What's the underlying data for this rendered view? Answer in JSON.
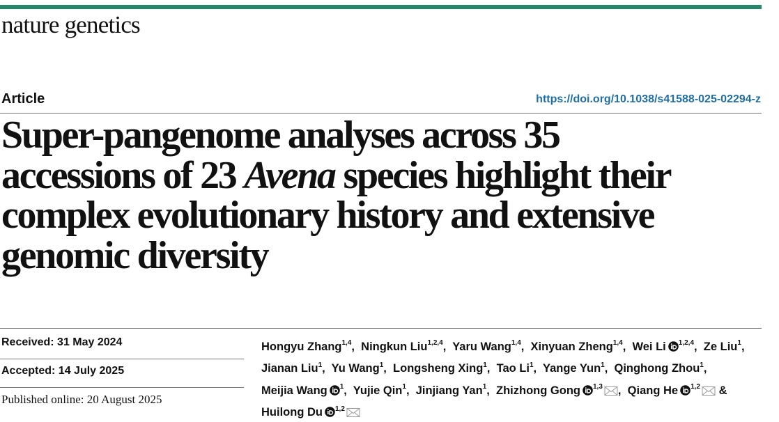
{
  "journal": "nature genetics",
  "article_type": "Article",
  "doi": "https://doi.org/10.1038/s41588-025-02294-z",
  "title_lines": [
    [
      {
        "text": "Super-pangenome analyses across 35"
      }
    ],
    [
      {
        "text": "accessions of 23 "
      },
      {
        "text": "Avena",
        "italic": true
      },
      {
        "text": " species highlight their"
      }
    ],
    [
      {
        "text": "complex evolutionary history and extensive"
      }
    ],
    [
      {
        "text": "genomic diversity"
      }
    ]
  ],
  "dates": [
    "Received: 31 May 2024",
    "Accepted: 14 July 2025",
    "Published online: 20 August 2025"
  ],
  "authors": [
    {
      "name": "Hongyu Zhang",
      "affil": "1,4",
      "sep": ", "
    },
    {
      "name": "Ningkun Liu",
      "affil": "1,2,4",
      "sep": ", "
    },
    {
      "name": "Yaru Wang",
      "affil": "1,4",
      "sep": ", "
    },
    {
      "name": "Xinyuan Zheng",
      "affil": "1,4",
      "sep": ", "
    },
    {
      "name": "Wei Li",
      "orcid": true,
      "affil": "1,2,4",
      "sep": ", "
    },
    {
      "name": "Ze Liu",
      "affil": "1",
      "sep": ", "
    },
    {
      "name": "Jianan Liu",
      "affil": "1",
      "sep": ", "
    },
    {
      "name": "Yu Wang",
      "affil": "1",
      "sep": ", "
    },
    {
      "name": "Longsheng Xing",
      "affil": "1",
      "sep": ", "
    },
    {
      "name": "Tao Li",
      "affil": "1",
      "sep": ", "
    },
    {
      "name": "Yange Yun",
      "affil": "1",
      "sep": ", "
    },
    {
      "name": "Qinghong Zhou",
      "affil": "1",
      "sep": ", "
    },
    {
      "name": "Meijia Wang",
      "orcid": true,
      "affil": "1",
      "sep": ", "
    },
    {
      "name": "Yujie Qin",
      "affil": "1",
      "sep": ", "
    },
    {
      "name": "Jinjiang Yan",
      "affil": "1",
      "sep": ", "
    },
    {
      "name": "Zhizhong Gong",
      "orcid": true,
      "affil": "1,3",
      "email": true,
      "sep": ", "
    },
    {
      "name": "Qiang He",
      "orcid": true,
      "affil": "1,2",
      "email": true,
      "sep": " & "
    },
    {
      "name": "Huilong Du",
      "orcid": true,
      "affil": "1,2",
      "email": true
    }
  ]
}
